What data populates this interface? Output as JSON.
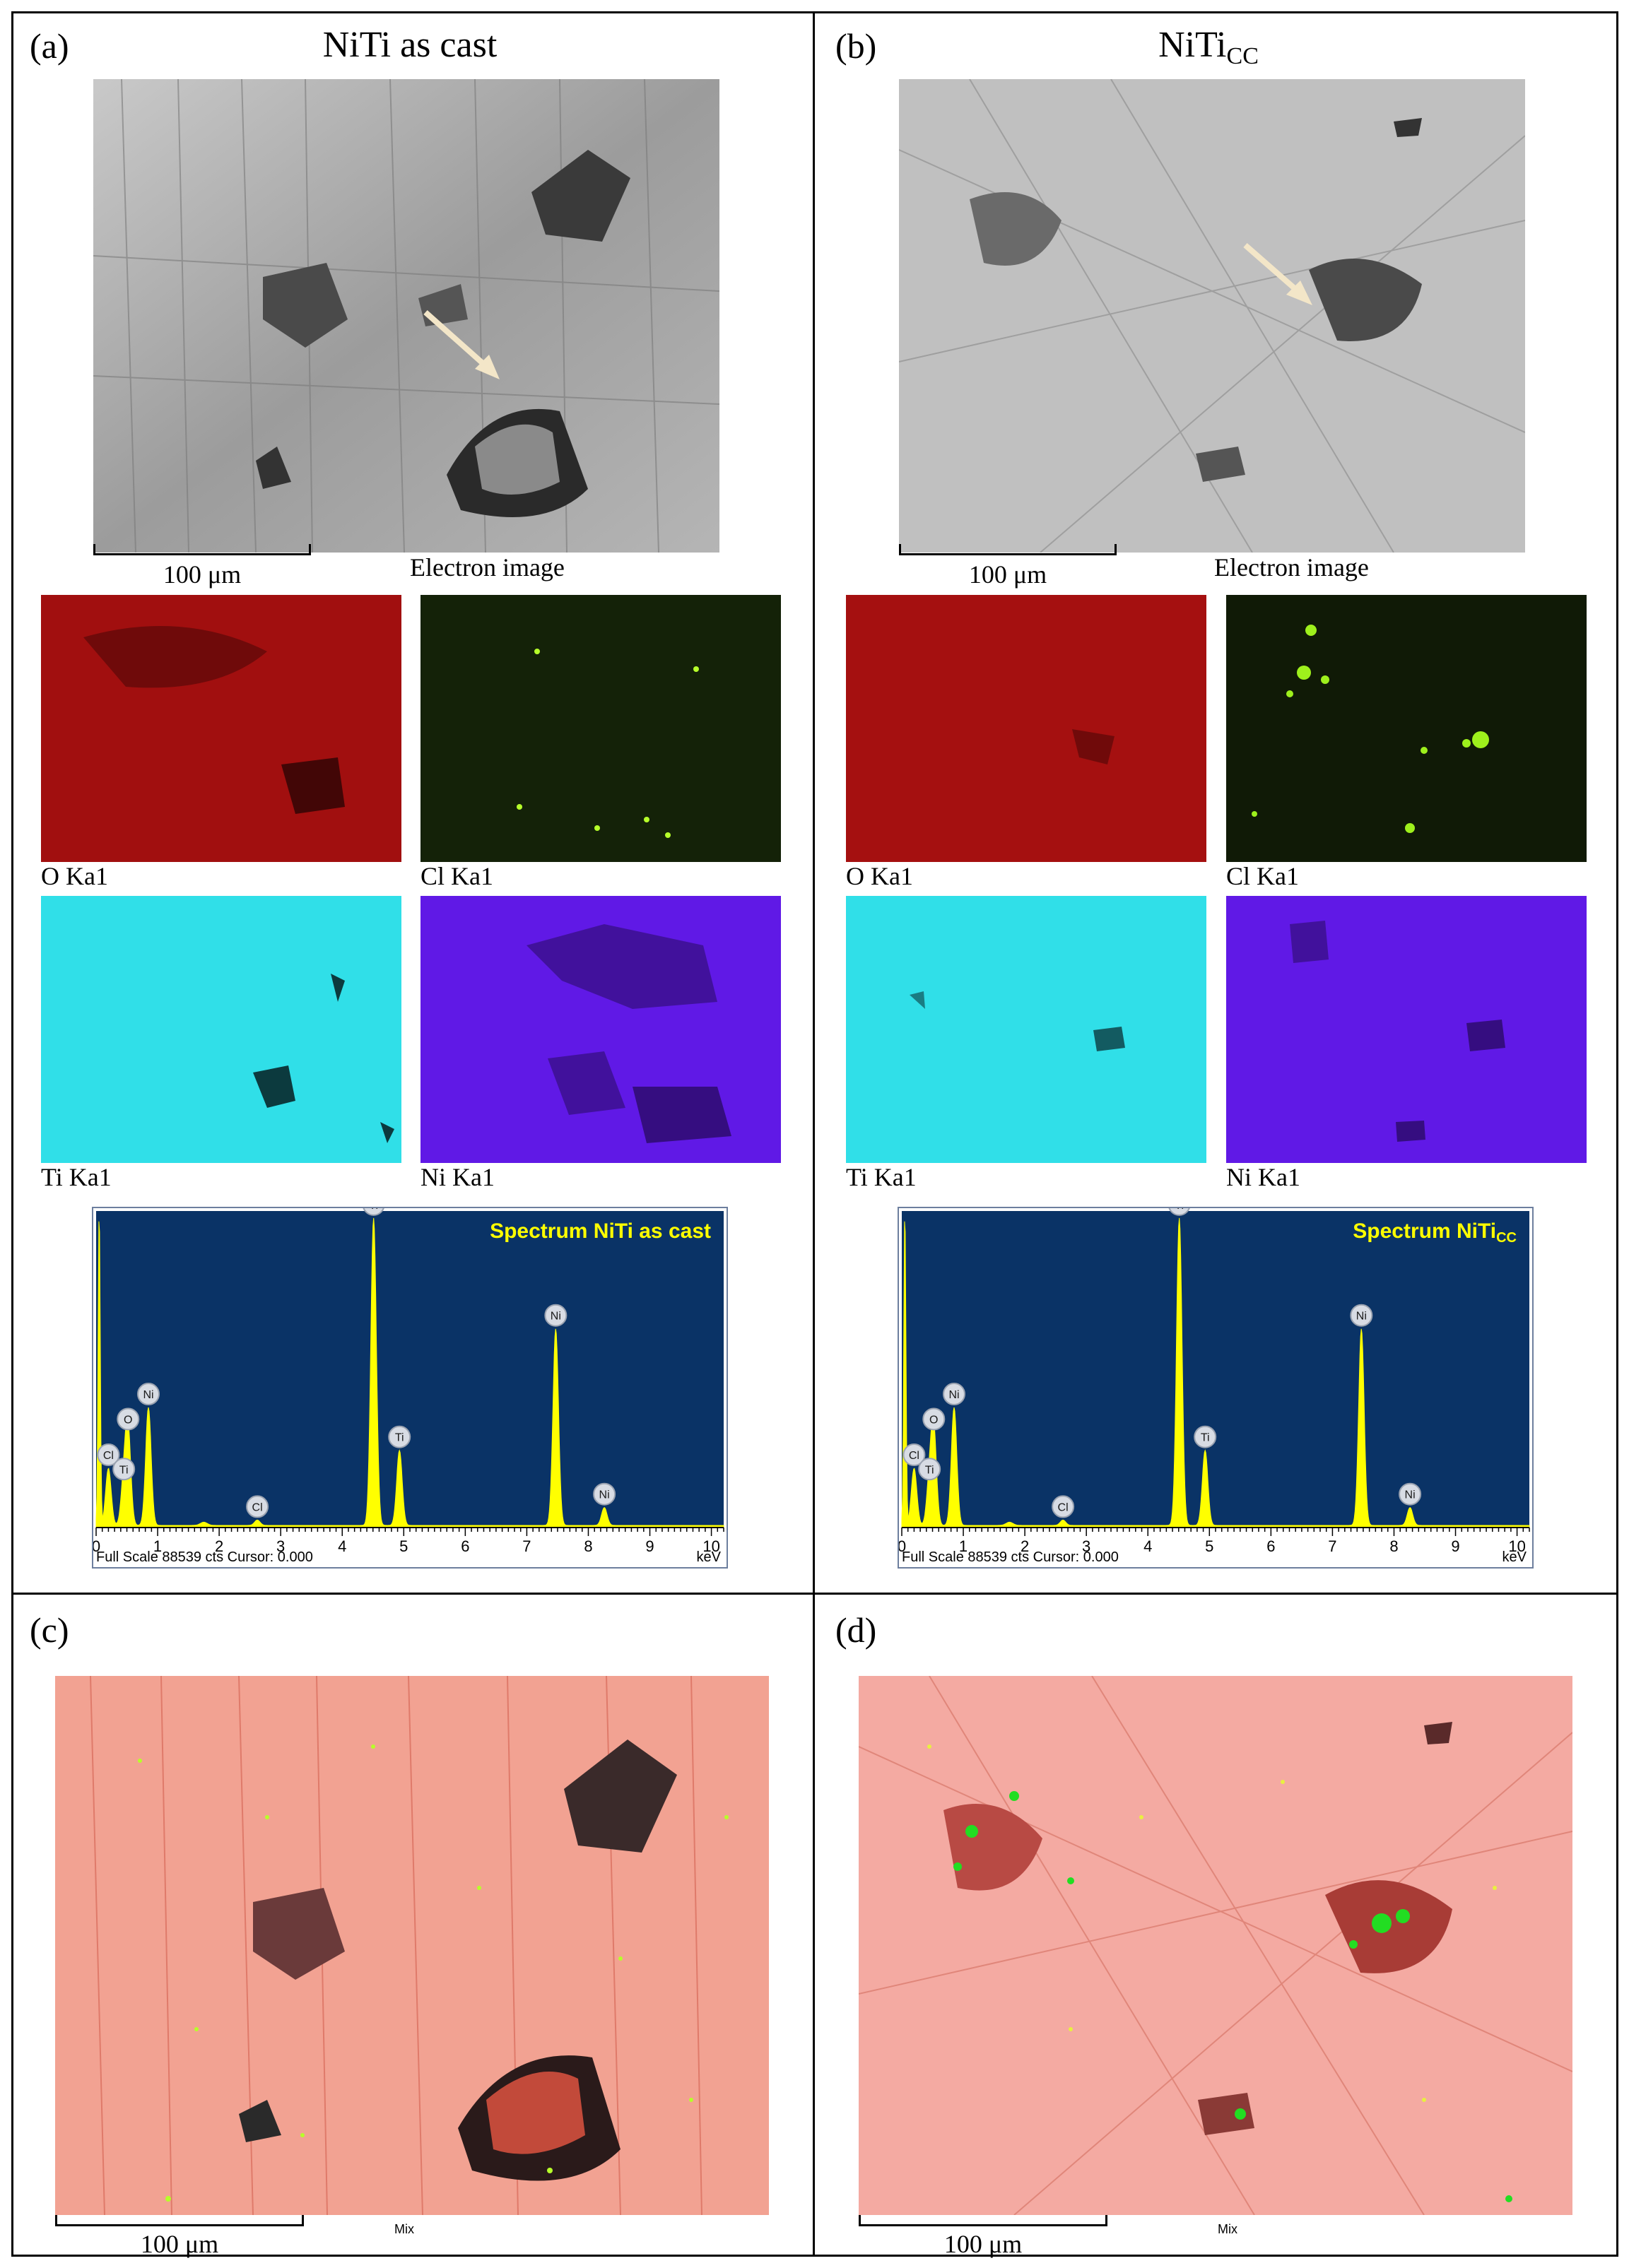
{
  "panels": {
    "a": {
      "label": "(a)",
      "title": "NiTi as cast",
      "scale_label": "100 μm",
      "electron_caption": "Electron image",
      "maps": [
        {
          "caption": "O Ka1",
          "color": "#cc1111"
        },
        {
          "caption": "Cl Ka1",
          "color": "#8fd21a"
        },
        {
          "caption": "Ti Ka1",
          "color": "#22e6ee"
        },
        {
          "caption": "Ni Ka1",
          "color": "#6a1bff"
        }
      ],
      "spectrum": {
        "title": "Spectrum NiTi as cast",
        "footer_left": "Full Scale 88539 cts Cursor: 0.000",
        "footer_right": "keV"
      }
    },
    "b": {
      "label": "(b)",
      "title_main": "NiTi",
      "title_sub": "CC",
      "scale_label": "100 μm",
      "electron_caption": "Electron image",
      "maps": [
        {
          "caption": "O Ka1",
          "color": "#cc1111"
        },
        {
          "caption": "Cl Ka1",
          "color": "#8fd21a"
        },
        {
          "caption": "Ti Ka1",
          "color": "#22e6ee"
        },
        {
          "caption": "Ni Ka1",
          "color": "#6a1bff"
        }
      ],
      "spectrum": {
        "title_main": "Spectrum NiTi",
        "title_sub": "CC",
        "footer_left": "Full Scale 88539 cts Cursor: 0.000",
        "footer_right": "keV"
      }
    },
    "c": {
      "label": "(c)",
      "scale_label": "100 μm",
      "mix_label": "Mix"
    },
    "d": {
      "label": "(d)",
      "scale_label": "100 μm",
      "mix_label": "Mix"
    }
  },
  "chart_data": [
    {
      "type": "line",
      "name": "Spectrum NiTi as cast",
      "xlabel": "keV",
      "xlim": [
        0,
        10.2
      ],
      "xticks": [
        "0",
        "1",
        "2",
        "3",
        "4",
        "5",
        "6",
        "7",
        "8",
        "9",
        "10"
      ],
      "ylim": [
        0,
        88539
      ],
      "peaks": [
        {
          "label": "Cl",
          "energy": 0.2,
          "counts": 16000
        },
        {
          "label": "Ti",
          "energy": 0.45,
          "counts": 12000
        },
        {
          "label": "O",
          "energy": 0.52,
          "counts": 26000
        },
        {
          "label": "Ni",
          "energy": 0.85,
          "counts": 33000
        },
        {
          "label": "Cl",
          "energy": 2.62,
          "counts": 1500
        },
        {
          "label": "Ti",
          "energy": 4.51,
          "counts": 86000
        },
        {
          "label": "Ti",
          "energy": 4.93,
          "counts": 21000
        },
        {
          "label": "Ni",
          "energy": 7.47,
          "counts": 55000
        },
        {
          "label": "Ni",
          "energy": 8.26,
          "counts": 5000
        }
      ]
    },
    {
      "type": "line",
      "name": "Spectrum NiTiCC",
      "xlabel": "keV",
      "xlim": [
        0,
        10.2
      ],
      "xticks": [
        "0",
        "1",
        "2",
        "3",
        "4",
        "5",
        "6",
        "7",
        "8",
        "9",
        "10"
      ],
      "ylim": [
        0,
        88539
      ],
      "peaks": [
        {
          "label": "Cl",
          "energy": 0.2,
          "counts": 16000
        },
        {
          "label": "Ti",
          "energy": 0.45,
          "counts": 12000
        },
        {
          "label": "O",
          "energy": 0.52,
          "counts": 26000
        },
        {
          "label": "Ni",
          "energy": 0.85,
          "counts": 33000
        },
        {
          "label": "Cl",
          "energy": 2.62,
          "counts": 1500
        },
        {
          "label": "Ti",
          "energy": 4.51,
          "counts": 86000
        },
        {
          "label": "Ti",
          "energy": 4.93,
          "counts": 21000
        },
        {
          "label": "Ni",
          "energy": 7.47,
          "counts": 55000
        },
        {
          "label": "Ni",
          "energy": 8.26,
          "counts": 5000
        }
      ]
    }
  ]
}
